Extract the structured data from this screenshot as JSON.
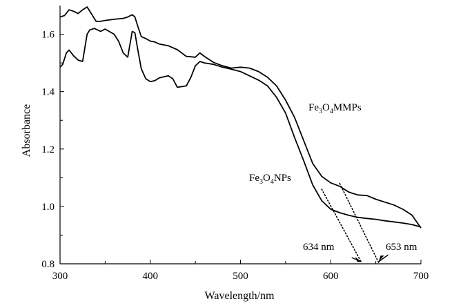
{
  "chart_data": {
    "type": "line",
    "xlabel": "Wavelength/nm",
    "ylabel": "Absorbance",
    "xlim": [
      300,
      700
    ],
    "ylim": [
      0.8,
      1.7
    ],
    "xticks": [
      300,
      400,
      500,
      600,
      700
    ],
    "yticks": [
      0.8,
      1.0,
      1.2,
      1.4,
      1.6
    ],
    "xtick_labels": [
      "300",
      "400",
      "500",
      "600",
      "700"
    ],
    "ytick_labels": [
      "0.8",
      "1.0",
      "1.2",
      "1.4",
      "1.6"
    ],
    "series": [
      {
        "name": "Fe3O4MMPs",
        "label_parts": [
          "Fe",
          "3",
          "O",
          "4",
          "MMPs"
        ],
        "x": [
          300,
          305,
          310,
          315,
          320,
          325,
          330,
          335,
          340,
          345,
          350,
          360,
          370,
          375,
          380,
          383,
          386,
          390,
          395,
          400,
          405,
          410,
          420,
          430,
          440,
          450,
          455,
          460,
          470,
          480,
          490,
          500,
          510,
          520,
          530,
          540,
          550,
          560,
          570,
          580,
          590,
          600,
          610,
          620,
          630,
          640,
          650,
          660,
          670,
          680,
          690,
          700
        ],
        "y": [
          1.66,
          1.665,
          1.685,
          1.68,
          1.672,
          1.685,
          1.695,
          1.67,
          1.645,
          1.645,
          1.648,
          1.652,
          1.655,
          1.66,
          1.668,
          1.66,
          1.63,
          1.592,
          1.585,
          1.576,
          1.573,
          1.566,
          1.56,
          1.546,
          1.523,
          1.52,
          1.535,
          1.523,
          1.502,
          1.49,
          1.482,
          1.485,
          1.482,
          1.47,
          1.45,
          1.42,
          1.37,
          1.31,
          1.23,
          1.15,
          1.105,
          1.082,
          1.07,
          1.05,
          1.04,
          1.038,
          1.025,
          1.015,
          1.005,
          0.99,
          0.97,
          0.925
        ]
      },
      {
        "name": "Fe3O4NPs",
        "label_parts": [
          "Fe",
          "3",
          "O",
          "4",
          "NPs"
        ],
        "x": [
          300,
          303,
          307,
          310,
          315,
          320,
          325,
          330,
          333,
          338,
          345,
          350,
          360,
          365,
          370,
          375,
          380,
          383,
          386,
          390,
          395,
          400,
          405,
          410,
          420,
          425,
          430,
          440,
          445,
          450,
          455,
          460,
          470,
          480,
          490,
          500,
          510,
          520,
          530,
          540,
          550,
          560,
          570,
          580,
          590,
          600,
          610,
          620,
          630,
          640,
          650,
          660,
          670,
          680,
          690,
          700
        ],
        "y": [
          1.485,
          1.495,
          1.535,
          1.545,
          1.525,
          1.51,
          1.505,
          1.6,
          1.615,
          1.62,
          1.61,
          1.618,
          1.6,
          1.575,
          1.535,
          1.52,
          1.61,
          1.605,
          1.55,
          1.48,
          1.445,
          1.435,
          1.438,
          1.448,
          1.455,
          1.445,
          1.415,
          1.42,
          1.45,
          1.49,
          1.505,
          1.5,
          1.495,
          1.485,
          1.478,
          1.47,
          1.455,
          1.44,
          1.42,
          1.38,
          1.325,
          1.24,
          1.16,
          1.075,
          1.02,
          0.99,
          0.978,
          0.969,
          0.962,
          0.958,
          0.955,
          0.95,
          0.946,
          0.942,
          0.937,
          0.928
        ]
      }
    ],
    "tangents": [
      {
        "from": [
          590,
          1.06
        ],
        "to": [
          634,
          0.805
        ],
        "style": "dotted"
      },
      {
        "from": [
          610,
          1.08
        ],
        "to": [
          653,
          0.805
        ],
        "style": "dotted"
      }
    ],
    "annotations": [
      {
        "text": "634 nm",
        "x": 634,
        "y": 0.8,
        "arrow": true
      },
      {
        "text": "653 nm",
        "x": 653,
        "y": 0.8,
        "arrow": true
      }
    ]
  }
}
